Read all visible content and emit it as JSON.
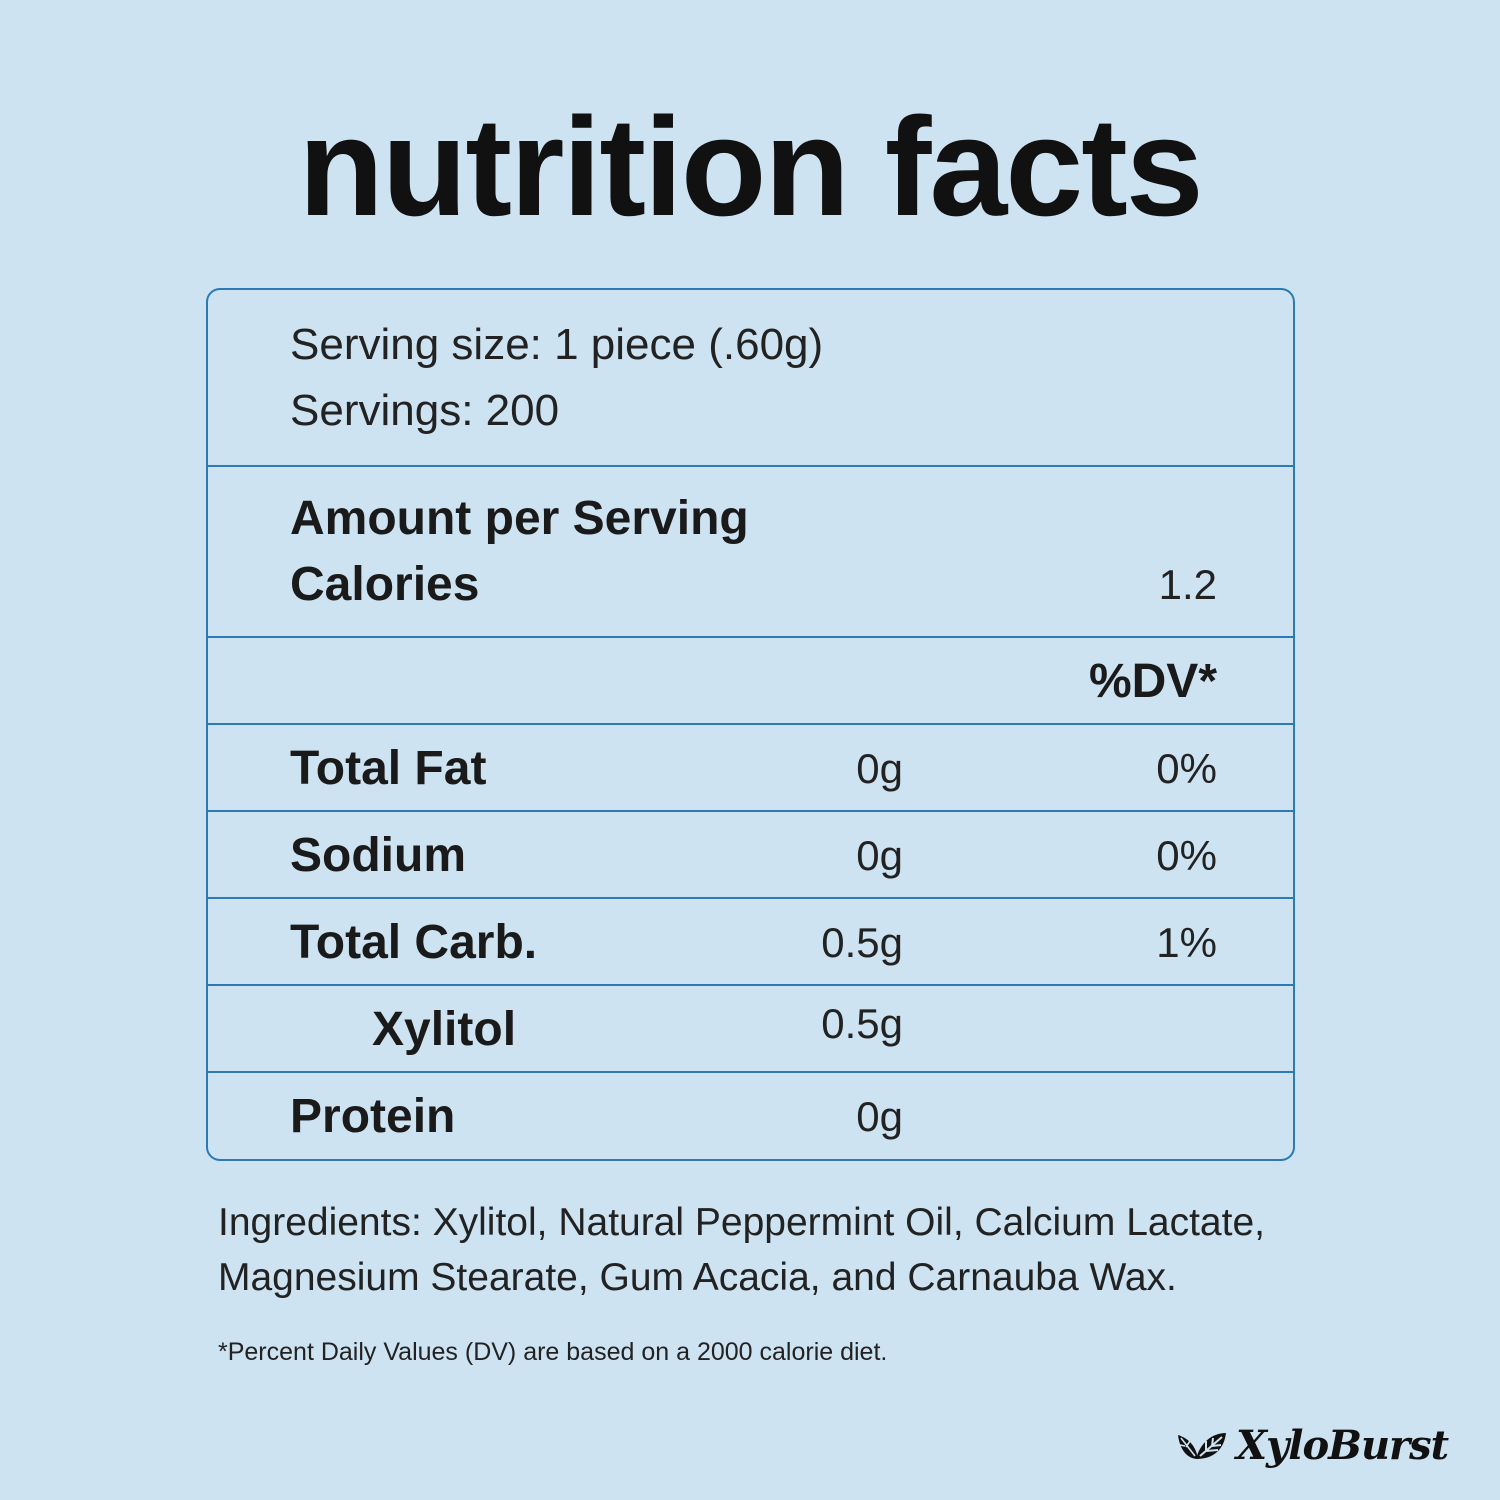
{
  "title": "nutrition facts",
  "serving": {
    "size": "Serving size: 1 piece (.60g)",
    "servings": "Servings: 200"
  },
  "amount_header": "Amount per Serving",
  "calories": {
    "label": "Calories",
    "value": "1.2"
  },
  "dv_header": "%DV*",
  "rows": [
    {
      "label": "Total Fat",
      "amount": "0g",
      "dv": "0%"
    },
    {
      "label": "Sodium",
      "amount": "0g",
      "dv": "0%"
    },
    {
      "label": "Total Carb.",
      "amount": "0.5g",
      "dv": "1%"
    },
    {
      "label": "Xylitol",
      "amount": "0.5g",
      "dv": ""
    },
    {
      "label": "Protein",
      "amount": "0g",
      "dv": ""
    }
  ],
  "ingredients": "Ingredients: Xylitol, Natural Peppermint Oil, Calcium Lactate, Magnesium Stearate, Gum Acacia, and Carnauba Wax.",
  "footnote": "*Percent Daily Values (DV) are based on a 2000 calorie diet.",
  "brand": {
    "name": "XyloBurst",
    "icon": "leaf-icon"
  },
  "colors": {
    "background": "#cde3f2",
    "border": "#2c7ab3",
    "text": "#1a1a1a"
  }
}
